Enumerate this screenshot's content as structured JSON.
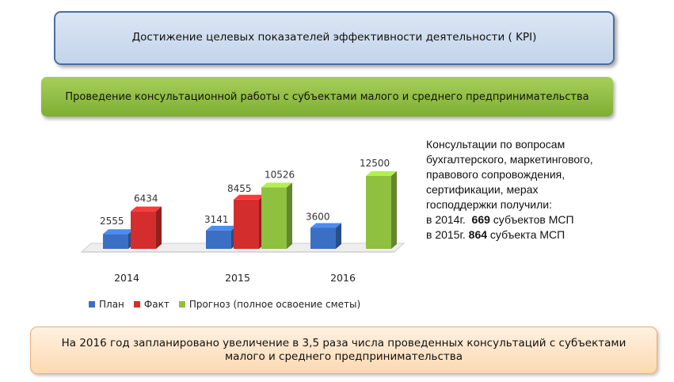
{
  "header": {
    "kpi_title": "Достижение целевых показателей эффективности деятельности ( KPI)",
    "section_title": "Проведение консультационной работы с субъектами малого и среднего предпринимательства"
  },
  "info": {
    "line1": "Консультации по вопросам",
    "line2": "бухгалтерского, маркетингового,",
    "line3": "правового сопровождения,",
    "line4": "сертификации, мерах",
    "line5": "господдержки получили:",
    "line6_prefix": "в 2014г.",
    "line6_value": "669",
    "line6_suffix": "субъектов МСП",
    "line7_prefix": "в 2015г.",
    "line7_value": "864",
    "line7_suffix": "субъекта МСП"
  },
  "footer": {
    "text": "На 2016 год запланировано увеличение в 3,5 раза числа проведенных консультаций с субъектами малого и среднего предпринимательства"
  },
  "colors": {
    "plan": "#3b6fc4",
    "fact": "#d42d2d",
    "forecast": "#8fc03f"
  },
  "chart_data": {
    "type": "bar",
    "categories": [
      "2014",
      "2015",
      "2016"
    ],
    "series": [
      {
        "name": "План",
        "values": [
          2555,
          3141,
          3600
        ]
      },
      {
        "name": "Факт",
        "values": [
          6434,
          8455,
          null
        ]
      },
      {
        "name": "Прогноз (полное освоение сметы)",
        "values": [
          null,
          10526,
          12500
        ]
      }
    ],
    "ylim": [
      0,
      12500
    ],
    "grid": false,
    "legend": "bottom-left"
  }
}
